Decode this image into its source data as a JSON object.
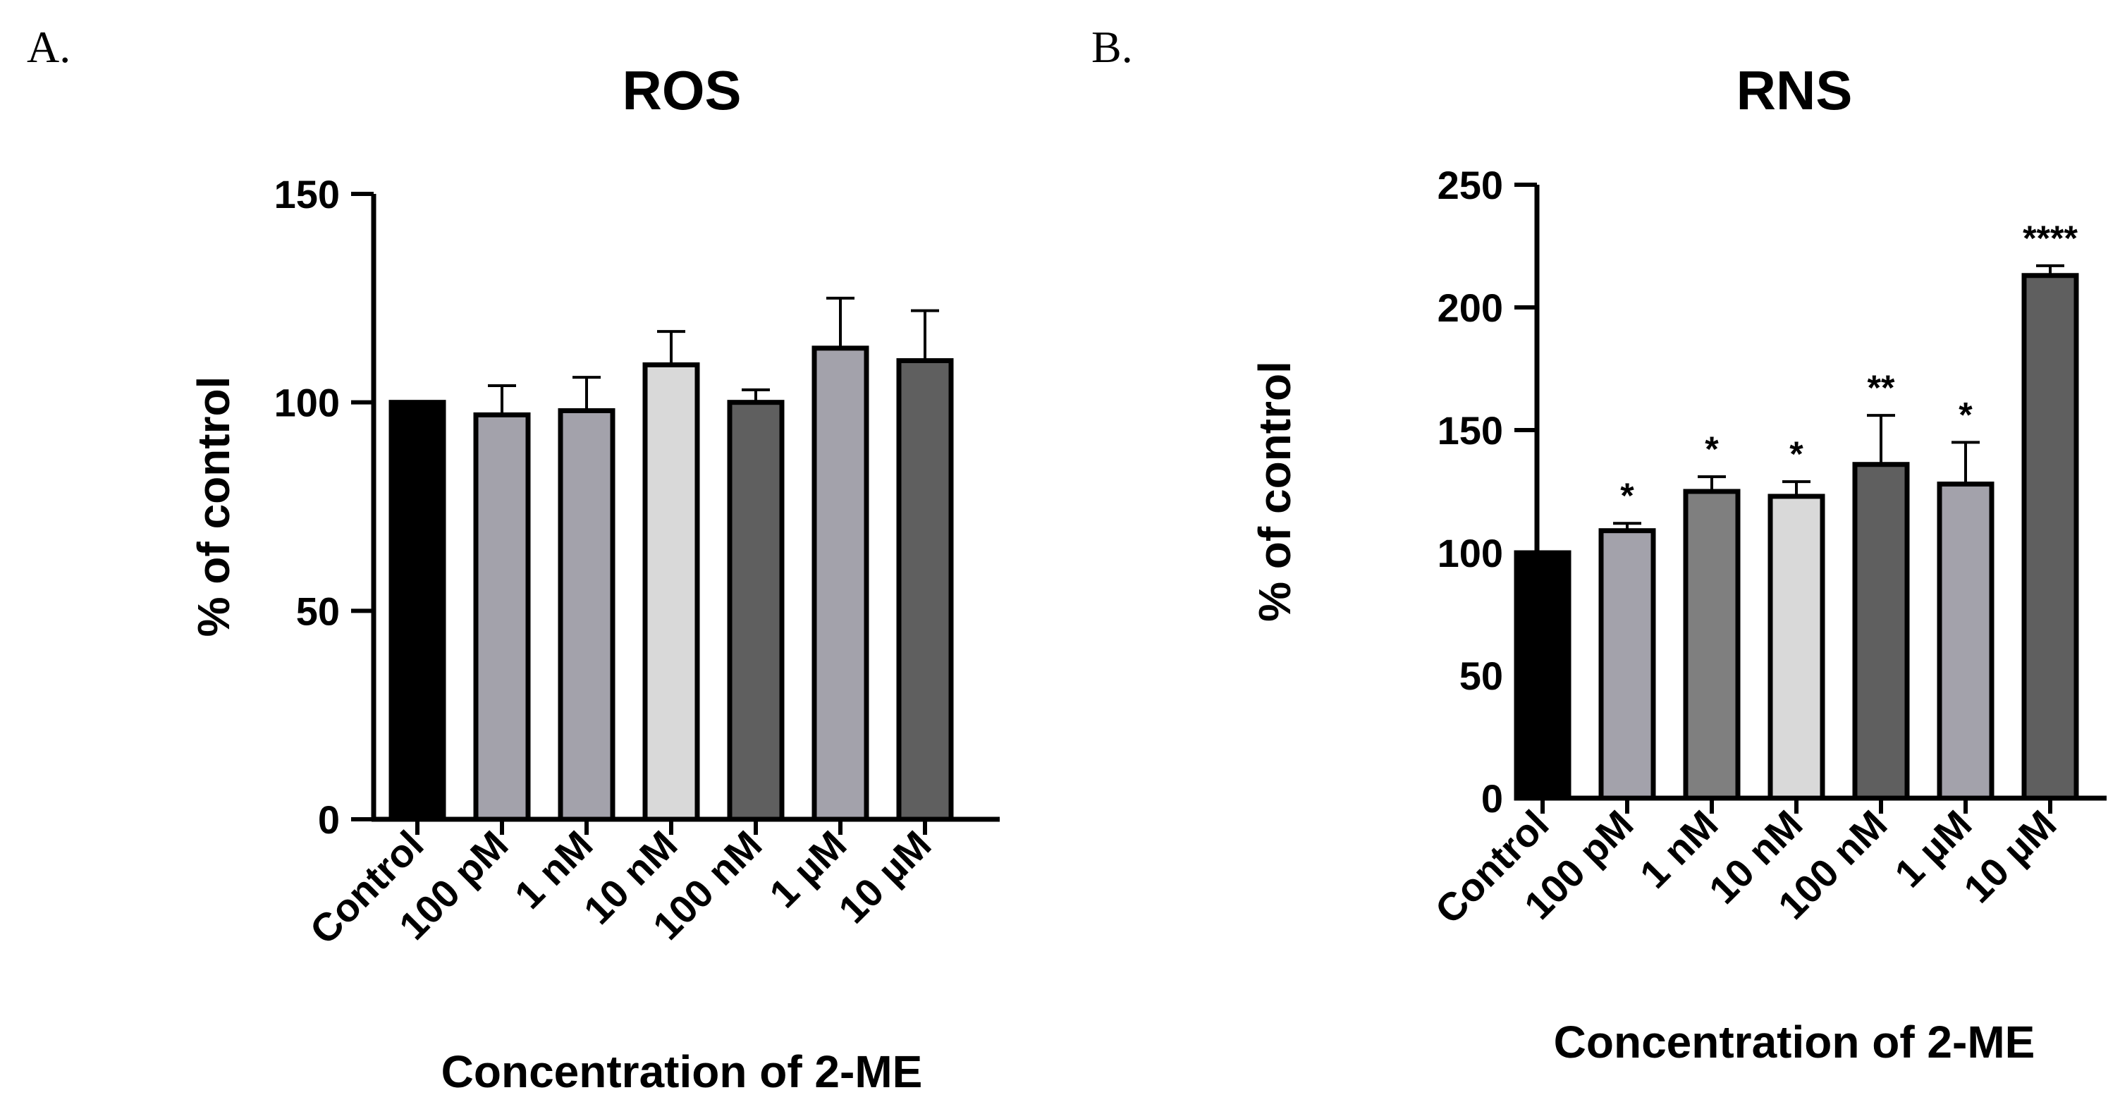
{
  "chart_data": [
    {
      "type": "bar",
      "panel": "A.",
      "title": "ROS",
      "xlabel": "Concentration of 2-ME",
      "ylabel": "% of control",
      "ylim": [
        0,
        150
      ],
      "yticks": [
        0,
        50,
        100,
        150
      ],
      "categories": [
        "Control",
        "100 pM",
        "1 nM",
        "10 nM",
        "100 nM",
        "1 µM",
        "10 µM"
      ],
      "values": [
        100,
        97,
        98,
        109,
        100,
        113,
        110
      ],
      "errors": [
        0,
        7,
        8,
        8,
        3,
        12,
        12
      ],
      "significance": [
        "",
        "",
        "",
        "",
        "",
        "",
        ""
      ],
      "colors": [
        "#000000",
        "#a3a2ab",
        "#a3a2ab",
        "#d9d9d9",
        "#5f5f5f",
        "#a3a2ab",
        "#5f5f5f"
      ]
    },
    {
      "type": "bar",
      "panel": "B.",
      "title": "RNS",
      "xlabel": "Concentration of 2-ME",
      "ylabel": "% of control",
      "ylim": [
        0,
        250
      ],
      "yticks": [
        0,
        50,
        100,
        150,
        200,
        250
      ],
      "categories": [
        "Control",
        "100 pM",
        "1 nM",
        "10 nM",
        "100 nM",
        "1 µM",
        "10 µM"
      ],
      "values": [
        100,
        109,
        125,
        123,
        136,
        128,
        213
      ],
      "errors": [
        0,
        3,
        6,
        6,
        20,
        17,
        4
      ],
      "significance": [
        "",
        "*",
        "*",
        "*",
        "**",
        "*",
        "****"
      ],
      "colors": [
        "#000000",
        "#a3a2ab",
        "#7f7f7f",
        "#d9d9d9",
        "#5f5f5f",
        "#a3a2ab",
        "#5f5f5f"
      ]
    }
  ]
}
